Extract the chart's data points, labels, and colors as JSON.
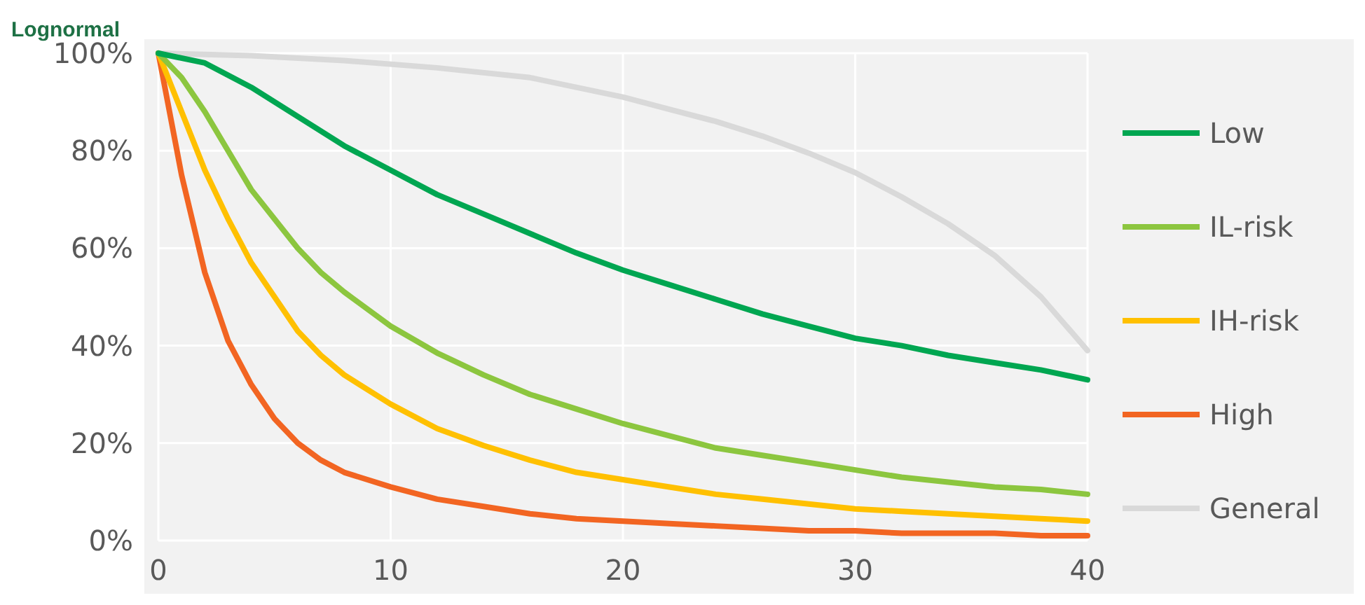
{
  "chart_data": {
    "type": "line",
    "title": "Lognormal",
    "xlim": [
      0,
      40
    ],
    "xticks": [
      0,
      10,
      20,
      30,
      40
    ],
    "ylim": [
      0,
      100
    ],
    "yticks": [
      {
        "value": 0,
        "label": "0%"
      },
      {
        "value": 20,
        "label": "20%"
      },
      {
        "value": 40,
        "label": "40%"
      },
      {
        "value": 60,
        "label": "60%"
      },
      {
        "value": 80,
        "label": "80%"
      },
      {
        "value": 100,
        "label": "100%"
      }
    ],
    "grid": true,
    "legend": "right",
    "line_style": "solid",
    "series": [
      {
        "name": "Low",
        "color": "#00a651",
        "x": [
          0,
          2,
          4,
          6,
          8,
          10,
          12,
          14,
          16,
          18,
          20,
          22,
          24,
          26,
          28,
          30,
          32,
          34,
          36,
          38,
          40
        ],
        "values": [
          100,
          98,
          93,
          87,
          81,
          76,
          71,
          67,
          63,
          59,
          55.5,
          52.5,
          49.5,
          46.5,
          44,
          41.5,
          40,
          38,
          36.5,
          35,
          33
        ]
      },
      {
        "name": "IL-risk",
        "color": "#8cc63f",
        "x": [
          0,
          1,
          2,
          3,
          4,
          5,
          6,
          7,
          8,
          10,
          12,
          14,
          16,
          18,
          20,
          22,
          24,
          26,
          28,
          30,
          32,
          34,
          36,
          38,
          40
        ],
        "values": [
          100,
          95,
          88,
          80,
          72,
          66,
          60,
          55,
          51,
          44,
          38.5,
          34,
          30,
          27,
          24,
          21.5,
          19,
          17.5,
          16,
          14.5,
          13,
          12,
          11,
          10.5,
          9.5
        ]
      },
      {
        "name": "IH-risk",
        "color": "#ffc000",
        "x": [
          0,
          1,
          2,
          3,
          4,
          5,
          6,
          7,
          8,
          10,
          12,
          14,
          16,
          18,
          20,
          22,
          24,
          26,
          28,
          30,
          32,
          34,
          36,
          38,
          40
        ],
        "values": [
          100,
          88,
          76,
          66,
          57,
          50,
          43,
          38,
          34,
          28,
          23,
          19.5,
          16.5,
          14,
          12.5,
          11,
          9.5,
          8.5,
          7.5,
          6.5,
          6,
          5.5,
          5,
          4.5,
          4
        ]
      },
      {
        "name": "High",
        "color": "#f26522",
        "x": [
          0,
          1,
          2,
          3,
          4,
          5,
          6,
          7,
          8,
          10,
          12,
          14,
          16,
          18,
          20,
          22,
          24,
          26,
          28,
          30,
          32,
          34,
          36,
          38,
          40
        ],
        "values": [
          100,
          75,
          55,
          41,
          32,
          25,
          20,
          16.5,
          14,
          11,
          8.5,
          7,
          5.5,
          4.5,
          4,
          3.5,
          3,
          2.5,
          2,
          2,
          1.5,
          1.5,
          1.5,
          1,
          1
        ]
      },
      {
        "name": "General",
        "color": "#d9d9d9",
        "x": [
          0,
          4,
          8,
          12,
          16,
          20,
          22,
          24,
          26,
          28,
          30,
          32,
          34,
          36,
          38,
          40
        ],
        "values": [
          100,
          99.5,
          98.5,
          97,
          95,
          91,
          88.5,
          86,
          83,
          79.5,
          75.5,
          70.5,
          65,
          58.5,
          50,
          39
        ]
      }
    ]
  }
}
